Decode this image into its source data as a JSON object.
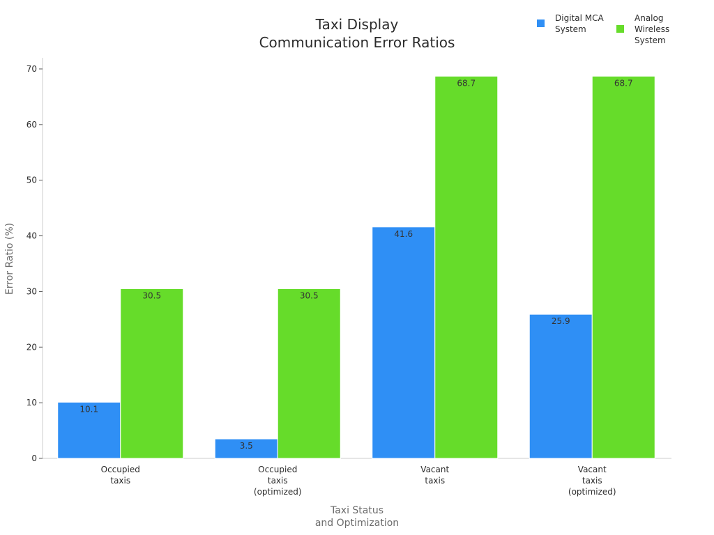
{
  "chart_data": {
    "type": "bar",
    "title": [
      "Taxi Display",
      "Communication Error Ratios"
    ],
    "xlabel": [
      "Taxi Status",
      "and Optimization"
    ],
    "ylabel": "Error Ratio (%)",
    "ylim": [
      0,
      72
    ],
    "yticks": [
      0,
      10,
      20,
      30,
      40,
      50,
      60,
      70
    ],
    "grid": false,
    "legend_position": "top-right",
    "categories": [
      [
        "Occupied",
        "taxis"
      ],
      [
        "Occupied",
        "taxis",
        "(optimized)"
      ],
      [
        "Vacant",
        "taxis"
      ],
      [
        "Vacant",
        "taxis",
        "(optimized)"
      ]
    ],
    "series": [
      {
        "name": [
          "Digital MCA",
          "System"
        ],
        "color": "#2f8ff5",
        "values": [
          10.1,
          3.5,
          41.6,
          25.9
        ]
      },
      {
        "name": [
          "Analog",
          "Wireless",
          "System"
        ],
        "color": "#66dc2a",
        "values": [
          30.5,
          30.5,
          68.7,
          68.7
        ]
      }
    ]
  }
}
